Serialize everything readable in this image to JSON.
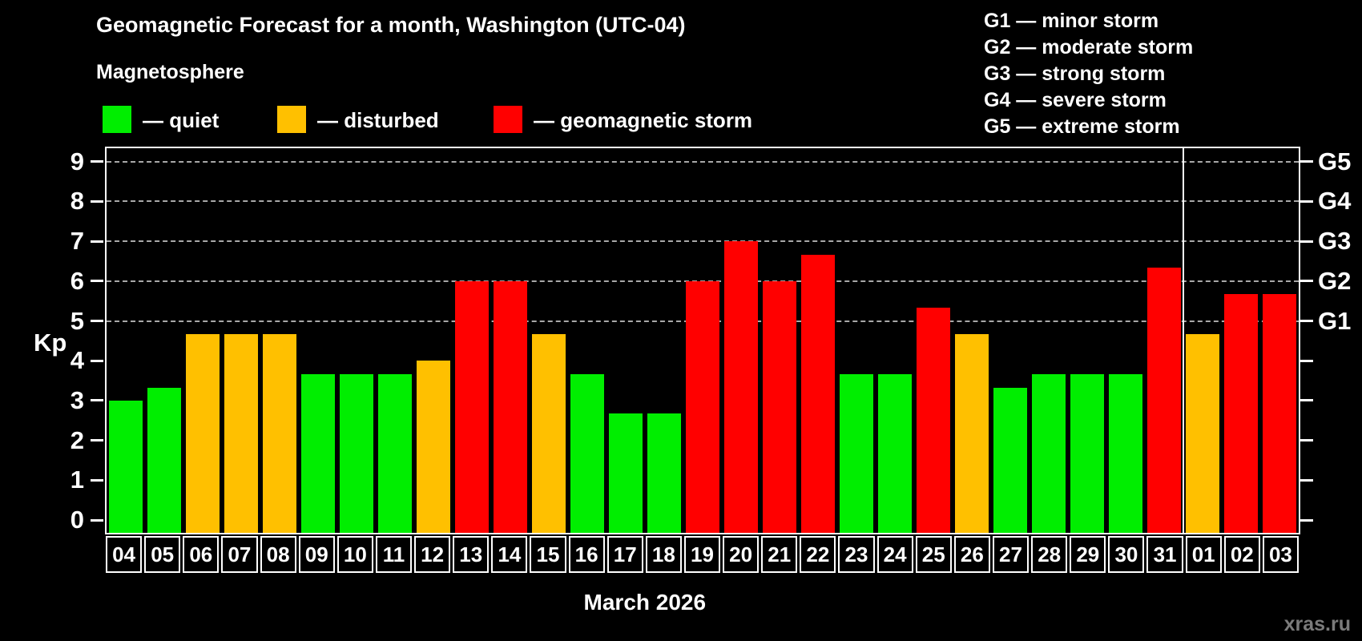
{
  "title": "Geomagnetic Forecast for a month, Washington (UTC-04)",
  "subtitle": "Magnetosphere",
  "legend": [
    {
      "name": "quiet",
      "label": "— quiet",
      "color": "#00ee00"
    },
    {
      "name": "disturbed",
      "label": "— disturbed",
      "color": "#ffc000"
    },
    {
      "name": "storm",
      "label": "— geomagnetic storm",
      "color": "#ff0000"
    }
  ],
  "g_scale_legend": [
    "G1 — minor storm",
    "G2 — moderate storm",
    "G3 — strong storm",
    "G4 — severe storm",
    "G5 — extreme storm"
  ],
  "watermark": "xras.ru",
  "chart_data": {
    "type": "bar",
    "title": "Geomagnetic Forecast for a month, Washington (UTC-04)",
    "xlabel": "March 2026",
    "ylabel": "Kp",
    "ylim": [
      -0.33,
      9.4
    ],
    "yticks": [
      0,
      1,
      2,
      3,
      4,
      5,
      6,
      7,
      8,
      9
    ],
    "gridline_kp": [
      5,
      6,
      7,
      8,
      9
    ],
    "grid": "dashed",
    "right_axis_labels": [
      {
        "kp": 5,
        "label": "G1"
      },
      {
        "kp": 6,
        "label": "G2"
      },
      {
        "kp": 7,
        "label": "G3"
      },
      {
        "kp": 8,
        "label": "G4"
      },
      {
        "kp": 9,
        "label": "G5"
      }
    ],
    "categories": [
      "04",
      "05",
      "06",
      "07",
      "08",
      "09",
      "10",
      "11",
      "12",
      "13",
      "14",
      "15",
      "16",
      "17",
      "18",
      "19",
      "20",
      "21",
      "22",
      "23",
      "24",
      "25",
      "26",
      "27",
      "28",
      "29",
      "30",
      "31",
      "01",
      "02",
      "03"
    ],
    "values": [
      3.0,
      3.33,
      4.67,
      4.67,
      4.67,
      3.67,
      3.67,
      3.67,
      4.0,
      6.0,
      6.0,
      4.67,
      3.67,
      2.67,
      2.67,
      6.0,
      7.0,
      6.0,
      6.67,
      3.67,
      3.67,
      5.33,
      4.67,
      3.33,
      3.67,
      3.67,
      3.67,
      6.33,
      4.67,
      5.67,
      5.67
    ],
    "statuses": [
      "quiet",
      "quiet",
      "disturbed",
      "disturbed",
      "disturbed",
      "quiet",
      "quiet",
      "quiet",
      "disturbed",
      "storm",
      "storm",
      "disturbed",
      "quiet",
      "quiet",
      "quiet",
      "storm",
      "storm",
      "storm",
      "storm",
      "quiet",
      "quiet",
      "storm",
      "disturbed",
      "quiet",
      "quiet",
      "quiet",
      "quiet",
      "storm",
      "disturbed",
      "storm",
      "storm"
    ],
    "status_colors": {
      "quiet": "#00ee00",
      "disturbed": "#ffc000",
      "storm": "#ff0000"
    },
    "month_separator_after_category": "31",
    "legend_position": "top-left"
  }
}
